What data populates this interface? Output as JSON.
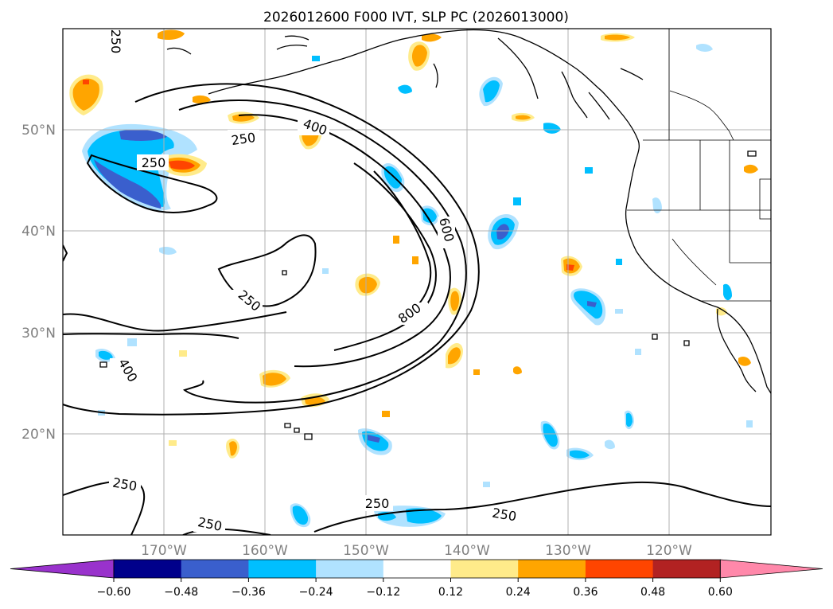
{
  "title": "2026012600 F000 IVT, SLP PC (2026013000)",
  "latitude_labels": [
    "50°N",
    "40°N",
    "30°N",
    "20°N"
  ],
  "longitude_labels": [
    "170°W",
    "160°W",
    "150°W",
    "140°W",
    "130°W",
    "120°W"
  ],
  "contour_labels": [
    "250",
    "400",
    "250",
    "250",
    "600",
    "250",
    "800",
    "400",
    "250",
    "250",
    "250",
    "250"
  ],
  "colorbar": {
    "tick_labels": [
      "−0.60",
      "−0.48",
      "−0.36",
      "−0.24",
      "−0.12",
      "0.12",
      "0.24",
      "0.36",
      "0.48",
      "0.60"
    ],
    "colors": [
      "#9932cc",
      "#00008b",
      "#3a5fcd",
      "#00bfff",
      "#b0e2ff",
      "#ffffff",
      "#ffeb8a",
      "#ffa500",
      "#ff4500",
      "#b22222",
      "#ff88aa"
    ]
  }
}
